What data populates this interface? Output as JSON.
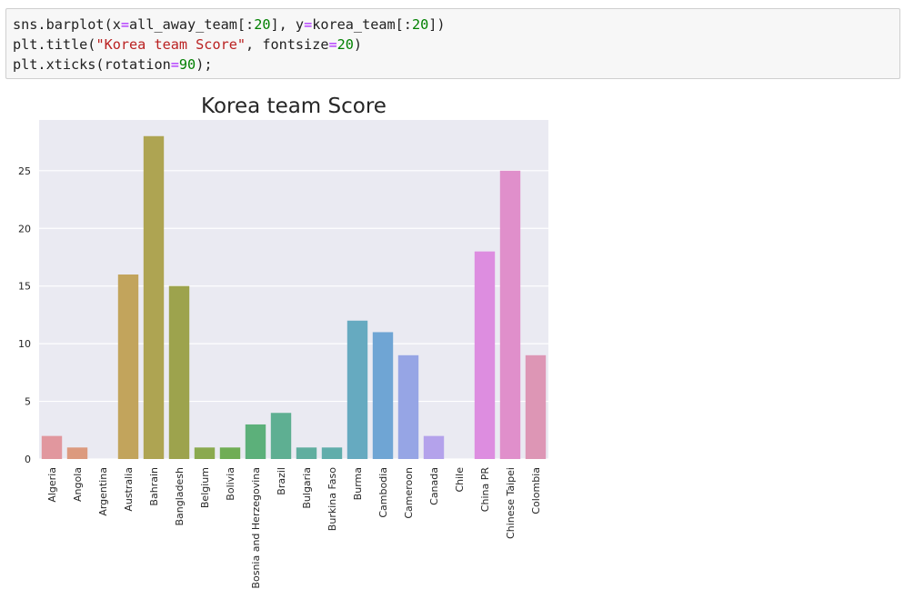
{
  "code": {
    "lines": [
      [
        {
          "t": "sns.barplot(x"
        },
        {
          "t": "=",
          "c": "op"
        },
        {
          "t": "all_away_team[:"
        },
        {
          "t": "20",
          "c": "num"
        },
        {
          "t": "], y"
        },
        {
          "t": "=",
          "c": "op"
        },
        {
          "t": "korea_team[:"
        },
        {
          "t": "20",
          "c": "num"
        },
        {
          "t": "])"
        }
      ],
      [
        {
          "t": "plt.title("
        },
        {
          "t": "\"Korea team Score\"",
          "c": "str"
        },
        {
          "t": ", fontsize"
        },
        {
          "t": "=",
          "c": "op"
        },
        {
          "t": "20",
          "c": "num"
        },
        {
          "t": ")"
        }
      ],
      [
        {
          "t": "plt.xticks(rotation"
        },
        {
          "t": "=",
          "c": "op"
        },
        {
          "t": "90",
          "c": "num"
        },
        {
          "t": ");"
        }
      ]
    ]
  },
  "chart_data": {
    "type": "bar",
    "title": "Korea team Score",
    "xlabel": "",
    "ylabel": "",
    "categories": [
      "Algeria",
      "Angola",
      "Argentina",
      "Australia",
      "Bahrain",
      "Bangladesh",
      "Belgium",
      "Bolivia",
      "Bosnia and Herzegovina",
      "Brazil",
      "Bulgaria",
      "Burkina Faso",
      "Burma",
      "Cambodia",
      "Cameroon",
      "Canada",
      "Chile",
      "China PR",
      "Chinese Taipei",
      "Colombia"
    ],
    "values": [
      2,
      1,
      0,
      16,
      28,
      15,
      1,
      1,
      3,
      4,
      1,
      1,
      12,
      11,
      9,
      2,
      0,
      18,
      25,
      9
    ],
    "yticks": [
      0,
      5,
      10,
      15,
      20,
      25
    ],
    "ylim": [
      0,
      29.4
    ],
    "grid": true,
    "colors": [
      "#e1979e",
      "#dc9a7e",
      "#d3a26a",
      "#c2a45c",
      "#aea452",
      "#9da34d",
      "#8aa94f",
      "#70ad55",
      "#5cb07a",
      "#5eaf92",
      "#60ae9f",
      "#60adab",
      "#66aac0",
      "#6fa5d4",
      "#96a5e5",
      "#b4a2eb",
      "#cd99ea",
      "#dd8de0",
      "#e08fcb",
      "#dd96b5"
    ],
    "background": "#eaeaf2"
  }
}
